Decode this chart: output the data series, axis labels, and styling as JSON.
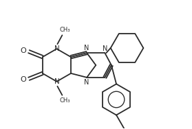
{
  "background_color": "#ffffff",
  "line_color": "#2a2a2a",
  "line_width": 1.3,
  "figsize": [
    2.79,
    1.88
  ],
  "dpi": 100,
  "xlim": [
    0,
    279
  ],
  "ylim": [
    0,
    188
  ]
}
